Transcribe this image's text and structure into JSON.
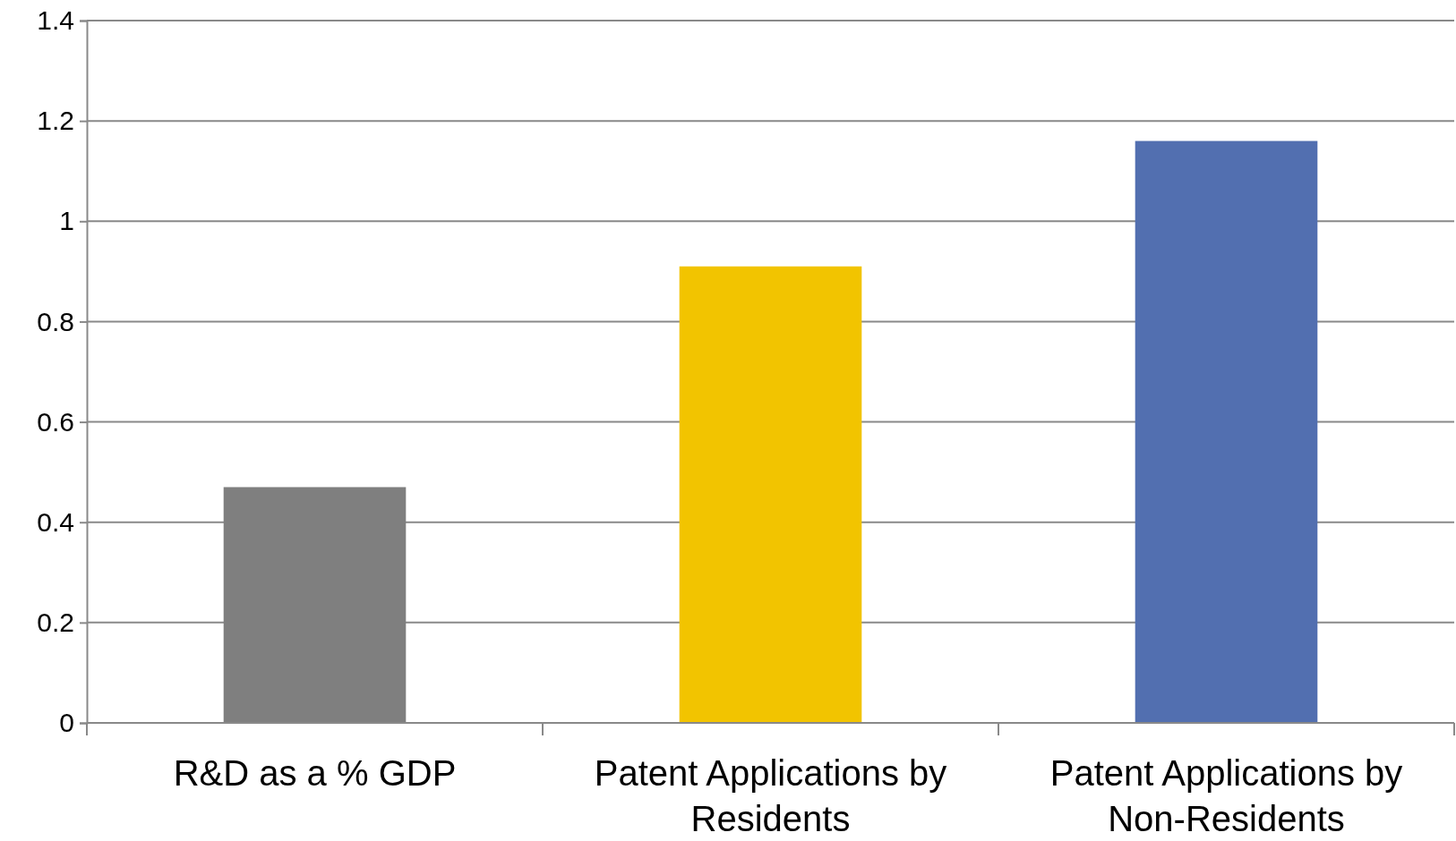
{
  "chart_data": {
    "type": "bar",
    "categories": [
      "R&D as a % GDP",
      "Patent Applications by Residents",
      "Patent Applications by Non-Residents"
    ],
    "values": [
      0.47,
      0.91,
      1.16
    ],
    "colors": [
      "#7f7f7f",
      "#f2c400",
      "#526fb0"
    ],
    "ylim": [
      0,
      1.4
    ],
    "yticks": [
      0,
      0.2,
      0.4,
      0.6,
      0.8,
      1,
      1.2,
      1.4
    ],
    "grid": "y"
  }
}
